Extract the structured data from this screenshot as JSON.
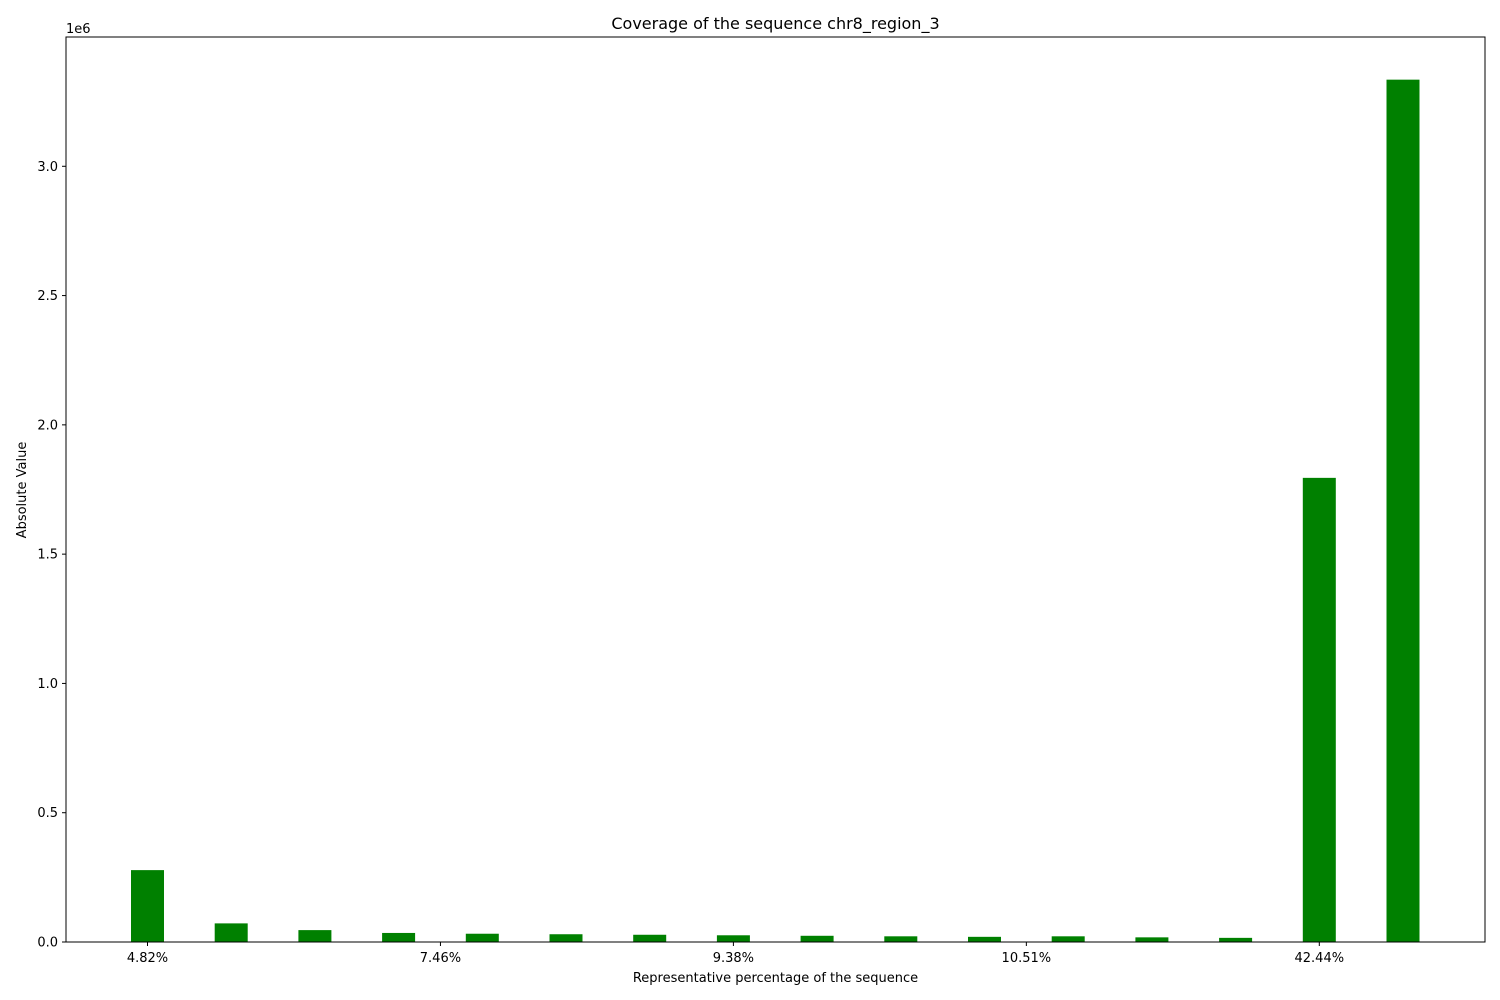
{
  "chart_data": {
    "type": "bar",
    "title": "Coverage of the sequence chr8_region_3",
    "xlabel": "Representative percentage of the sequence",
    "ylabel": "Absolute Value",
    "y_offset_label": "1e6",
    "bar_color": "#008000",
    "ylim": [
      0,
      3500000
    ],
    "y_ticks": [
      0,
      500000,
      1000000,
      1500000,
      2000000,
      2500000,
      3000000
    ],
    "y_tick_labels": [
      "0.0",
      "0.5",
      "1.0",
      "1.5",
      "2.0",
      "2.5",
      "3.0"
    ],
    "x_tick_labels": [
      {
        "index": 0,
        "label": "4.82%"
      },
      {
        "index": 3.5,
        "label": "7.46%"
      },
      {
        "index": 7,
        "label": "9.38%"
      },
      {
        "index": 10.5,
        "label": "10.51%"
      },
      {
        "index": 14,
        "label": "42.44%"
      }
    ],
    "values": [
      278000,
      72000,
      46000,
      35000,
      32000,
      30000,
      28000,
      26000,
      24000,
      22000,
      20000,
      22000,
      18000,
      16000,
      1795000,
      3335000
    ],
    "grid": false
  }
}
